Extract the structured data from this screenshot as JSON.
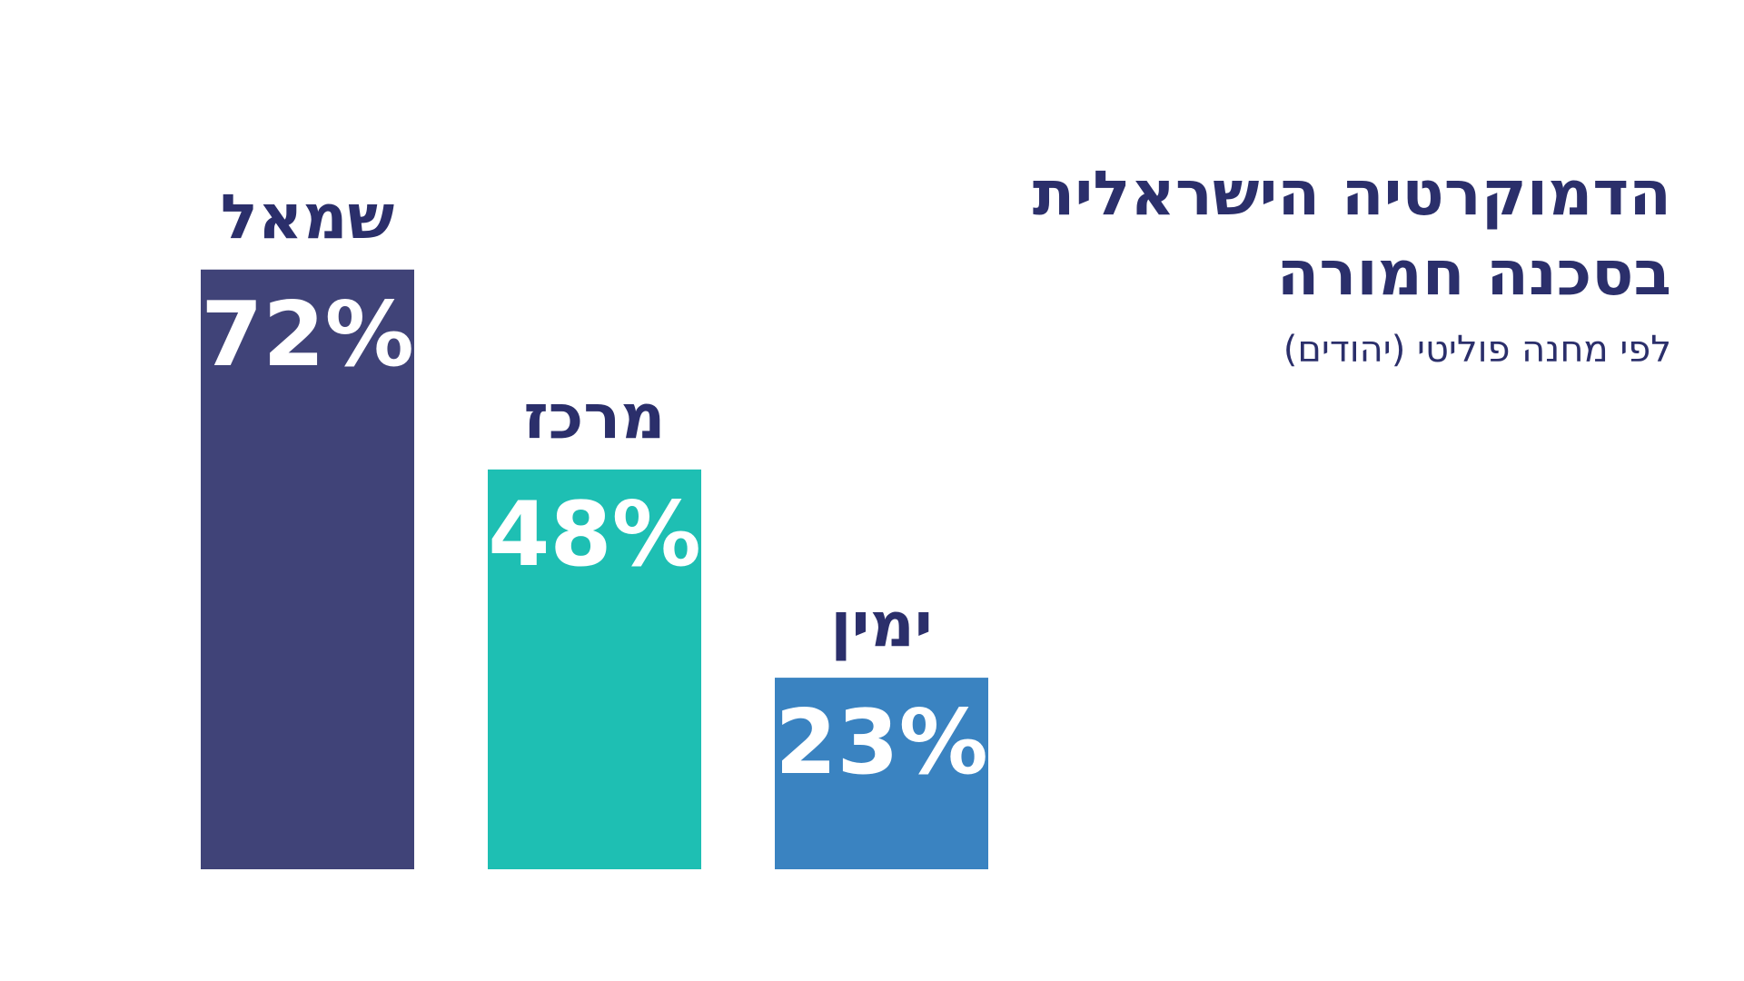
{
  "header": {
    "title_line1": "הדמוקרטיה הישראלית",
    "title_line2": "בסכנה חמורה",
    "subtitle": "לפי מחנה פוליטי (יהודים)"
  },
  "colors": {
    "title": "#2b2f6b",
    "bars": [
      "#404378",
      "#1ebfb3",
      "#3a83c1"
    ],
    "value_text": "#ffffff"
  },
  "chart_data": {
    "type": "bar",
    "title": "הדמוקרטיה הישראלית בסכנה חמורה",
    "subtitle": "לפי מחנה פוליטי (יהודים)",
    "categories": [
      "שמאל",
      "מרכז",
      "ימין"
    ],
    "values": [
      72,
      48,
      23
    ],
    "value_labels": [
      "72%",
      "48%",
      "23%"
    ],
    "ylim": [
      0,
      100
    ],
    "grid": false,
    "legend": "none"
  }
}
